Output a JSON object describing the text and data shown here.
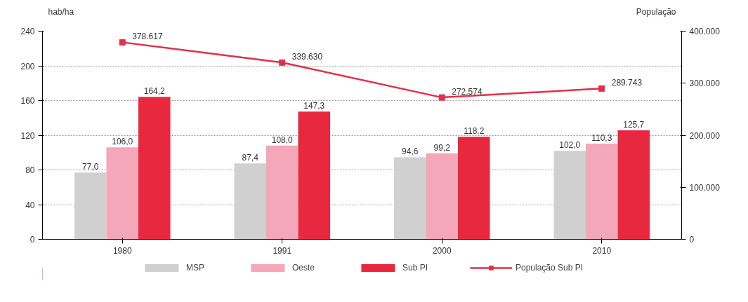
{
  "chart_data": {
    "type": "bar",
    "ylabel": "hab/ha",
    "y2label": "População",
    "categories": [
      "1980",
      "1991",
      "2000",
      "2010"
    ],
    "series": [
      {
        "name": "MSP",
        "color": "#d0d0d0",
        "values": [
          77.0,
          87.4,
          94.6,
          102.0
        ],
        "value_labels": [
          "77,0",
          "87,4",
          "94,6",
          "102,0"
        ]
      },
      {
        "name": "Oeste",
        "color": "#f4a7b8",
        "values": [
          106.0,
          108.0,
          99.2,
          110.3
        ],
        "value_labels": [
          "106,0",
          "108,0",
          "99,2",
          "110,3"
        ]
      },
      {
        "name": "Sub PI",
        "color": "#e8283f",
        "values": [
          164.2,
          147.3,
          118.2,
          125.7
        ],
        "value_labels": [
          "164,2",
          "147,3",
          "118,2",
          "125,7"
        ]
      },
      {
        "name": "População Sub PI",
        "type": "line",
        "axis": "y2",
        "color": "#e0304a",
        "marker": "square",
        "values": [
          378617,
          339630,
          272574,
          289743
        ],
        "value_labels": [
          "378.617",
          "339.630",
          "272.574",
          "289.743"
        ]
      }
    ],
    "ylim": [
      0,
      240
    ],
    "yticks": [
      0,
      40,
      80,
      120,
      160,
      200,
      240
    ],
    "y2lim": [
      0,
      400000
    ],
    "y2ticks": [
      {
        "value": 0,
        "label": "0"
      },
      {
        "value": 100000,
        "label": "100.000"
      },
      {
        "value": 200000,
        "label": "200.000"
      },
      {
        "value": 300000,
        "label": "300.000"
      },
      {
        "value": 400000,
        "label": "400.000"
      }
    ],
    "grid": "y",
    "legend": "bottom"
  }
}
